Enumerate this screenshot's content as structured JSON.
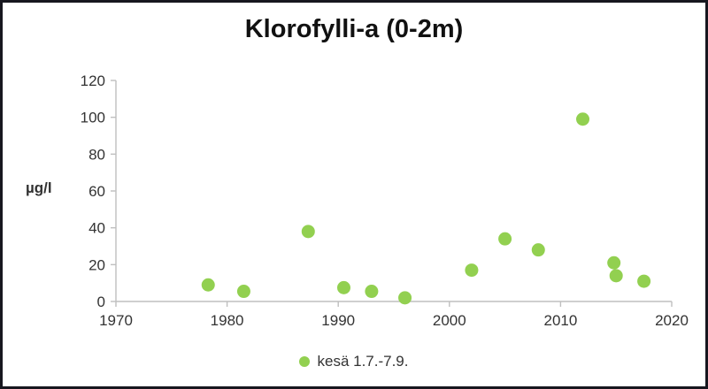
{
  "chart_data": {
    "type": "scatter",
    "title": "Klorofylli-a (0-2m)",
    "xlabel": "",
    "ylabel": "µg/l",
    "xlim": [
      1970,
      2020
    ],
    "ylim": [
      0,
      120
    ],
    "x_ticks": [
      1970,
      1980,
      1990,
      2000,
      2010,
      2020
    ],
    "y_ticks": [
      0,
      20,
      40,
      60,
      80,
      100,
      120
    ],
    "grid": false,
    "legend_position": "bottom",
    "axis_color": "#bfbfbf",
    "tick_label_color": "#333333",
    "series": [
      {
        "name": "kesä 1.7.-7.9.",
        "color": "#92d050",
        "points": [
          [
            1978.3,
            9
          ],
          [
            1981.5,
            5.5
          ],
          [
            1987.3,
            38
          ],
          [
            1990.5,
            7.5
          ],
          [
            1993.0,
            5.5
          ],
          [
            1996.0,
            2
          ],
          [
            2002.0,
            17
          ],
          [
            2005.0,
            34
          ],
          [
            2008.0,
            28
          ],
          [
            2012.0,
            99
          ],
          [
            2014.8,
            21
          ],
          [
            2015.0,
            14
          ],
          [
            2017.5,
            11
          ]
        ]
      }
    ]
  }
}
